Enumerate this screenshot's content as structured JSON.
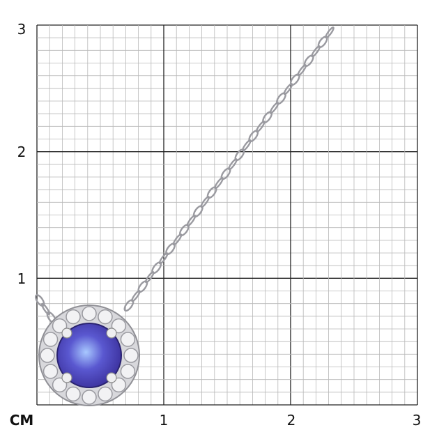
{
  "scale": {
    "unit_label": "CM",
    "x_ticks": [
      "1",
      "2",
      "3"
    ],
    "y_ticks": [
      "1",
      "2",
      "3"
    ],
    "subdivisions_per_unit": 10
  },
  "product": {
    "type": "pendant-necklace",
    "stone_color": "#3a2f9a",
    "metal_color": "#d8d8dc"
  }
}
